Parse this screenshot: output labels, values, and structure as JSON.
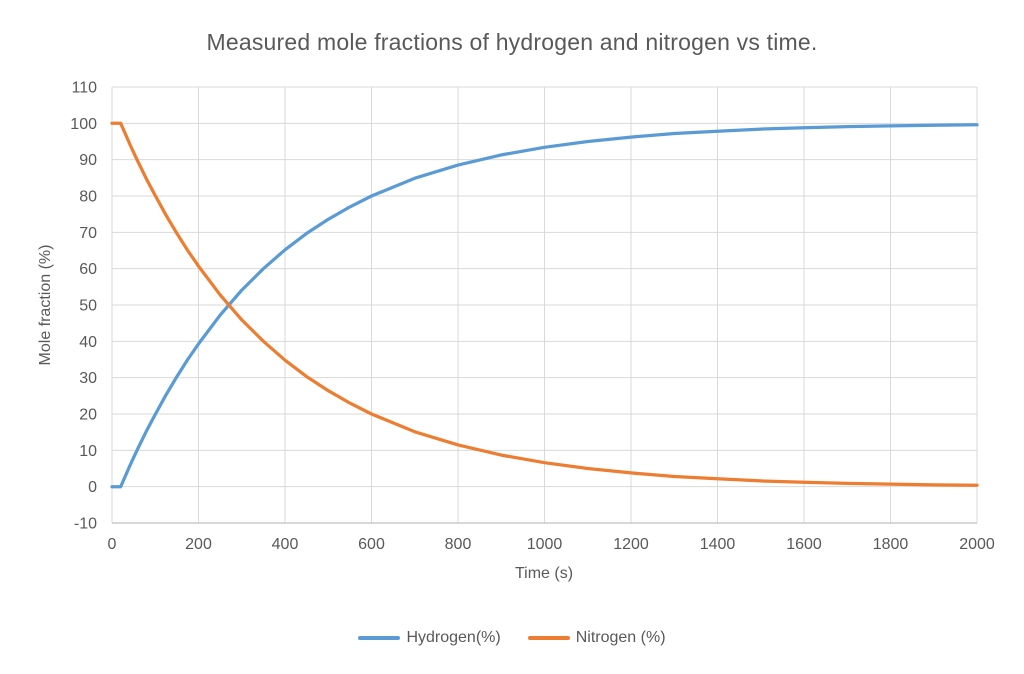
{
  "chart_data": {
    "type": "line",
    "title": "Measured mole fractions of hydrogen and nitrogen vs time.",
    "xlabel": "Time (s)",
    "ylabel": "Mole fraction (%)",
    "xlim": [
      0,
      2000
    ],
    "ylim": [
      -10,
      110
    ],
    "x_ticks": [
      0,
      200,
      400,
      600,
      800,
      1000,
      1200,
      1400,
      1600,
      1800,
      2000
    ],
    "y_ticks": [
      -10,
      0,
      10,
      20,
      30,
      40,
      50,
      60,
      70,
      80,
      90,
      100,
      110
    ],
    "grid": true,
    "legend_position": "bottom",
    "text_color": "#595959",
    "grid_color": "#D9D9D9",
    "axis_color": "#BFBFBF",
    "x": [
      0,
      20,
      30,
      40,
      50,
      60,
      80,
      100,
      125,
      150,
      175,
      200,
      250,
      300,
      350,
      400,
      450,
      500,
      550,
      600,
      700,
      800,
      900,
      1000,
      1100,
      1200,
      1300,
      1400,
      1500,
      1600,
      1700,
      1800,
      1900,
      2000
    ],
    "series": [
      {
        "name": "Hydrogen(%)",
        "color": "#5B9BD5",
        "values": [
          0,
          0,
          2.7,
          5.4,
          8.0,
          10.5,
          15.4,
          19.9,
          25.3,
          30.3,
          35.0,
          39.3,
          47.2,
          54.1,
          60.0,
          65.2,
          69.7,
          73.6,
          77.0,
          80.0,
          84.9,
          88.5,
          91.3,
          93.4,
          95.0,
          96.2,
          97.2,
          97.8,
          98.4,
          98.8,
          99.1,
          99.3,
          99.5,
          99.6
        ]
      },
      {
        "name": "Nitrogen (%)",
        "color": "#ED7D31",
        "values": [
          100,
          100,
          97.3,
          94.6,
          92.0,
          89.5,
          84.6,
          80.1,
          74.7,
          69.7,
          65.0,
          60.7,
          52.8,
          45.9,
          40.0,
          34.8,
          30.3,
          26.4,
          23.0,
          20.0,
          15.1,
          11.5,
          8.7,
          6.6,
          5.0,
          3.8,
          2.8,
          2.2,
          1.6,
          1.2,
          0.9,
          0.7,
          0.5,
          0.4
        ]
      }
    ]
  }
}
